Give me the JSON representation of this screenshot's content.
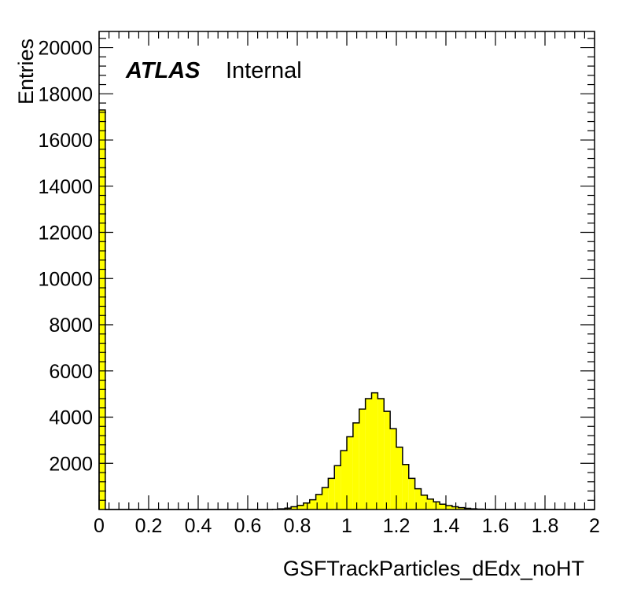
{
  "chart_data": {
    "type": "bar",
    "title": "",
    "xlabel": "GSFTrackParticles_dEdx_noHT",
    "ylabel": "Entries",
    "xlim": [
      0,
      2
    ],
    "ylim": [
      0,
      20700
    ],
    "bin_width": 0.025,
    "x_tick_labels": [
      "0",
      "0.2",
      "0.4",
      "0.6",
      "0.8",
      "1",
      "1.2",
      "1.4",
      "1.6",
      "1.8",
      "2"
    ],
    "y_tick_labels": [
      "2000",
      "4000",
      "6000",
      "8000",
      "10000",
      "12000",
      "14000",
      "16000",
      "18000",
      "20000"
    ],
    "label_atlas": "ATLAS",
    "label_status": "Internal",
    "fill_color": "#ffff00",
    "line_color": "#000000",
    "grid": false,
    "legend": "none",
    "series": [
      {
        "values": [
          17300,
          0,
          0,
          0,
          0,
          0,
          0,
          0,
          0,
          0,
          0,
          0,
          0,
          0,
          0,
          0,
          0,
          0,
          0,
          0,
          0,
          0,
          0,
          0,
          0,
          0,
          0,
          0,
          10,
          30,
          60,
          120,
          180,
          280,
          420,
          650,
          950,
          1350,
          1900,
          2550,
          3150,
          3750,
          4350,
          4800,
          5050,
          4800,
          4250,
          3500,
          2700,
          1950,
          1350,
          900,
          620,
          450,
          330,
          230,
          170,
          120,
          80,
          50,
          30,
          15,
          8,
          0,
          0,
          0,
          0,
          0,
          0,
          0,
          0,
          0,
          0,
          0,
          0,
          0,
          0,
          0,
          0,
          0
        ]
      }
    ]
  }
}
